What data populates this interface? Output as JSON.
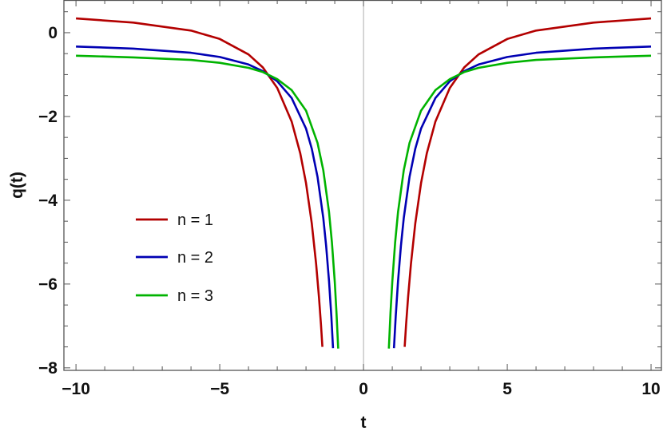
{
  "chart_data": {
    "type": "line",
    "title": "",
    "xlabel": "t",
    "ylabel": "q(t)",
    "xlim": [
      -10.42,
      10.36
    ],
    "ylim": [
      -8.06,
      0.78
    ],
    "xticks": [
      -10,
      -5,
      0,
      5,
      10
    ],
    "xtick_labels": [
      "−10",
      "−5",
      "0",
      "5",
      "10"
    ],
    "yticks": [
      0,
      -2,
      -4,
      -6,
      -8
    ],
    "ytick_labels": [
      "0",
      "−2",
      "−4",
      "−6",
      "−8"
    ],
    "grid": false,
    "legend_position": "left-center",
    "series": [
      {
        "name": "n = 1",
        "color": "#b30000",
        "branches": [
          {
            "x": [
              -10,
              -8,
              -6,
              -5,
              -4,
              -3.5,
              -3,
              -2.5,
              -2.2,
              -2,
              -1.8,
              -1.65,
              -1.55,
              -1.48,
              -1.43
            ],
            "y": [
              0.34,
              0.24,
              0.05,
              -0.15,
              -0.52,
              -0.83,
              -1.32,
              -2.12,
              -2.88,
              -3.59,
              -4.55,
              -5.51,
              -6.31,
              -6.96,
              -7.5
            ]
          },
          {
            "x": [
              1.43,
              1.48,
              1.55,
              1.65,
              1.8,
              2,
              2.2,
              2.5,
              3,
              3.5,
              4,
              5,
              6,
              8,
              10
            ],
            "y": [
              -7.5,
              -6.96,
              -6.31,
              -5.51,
              -4.55,
              -3.59,
              -2.88,
              -2.12,
              -1.32,
              -0.83,
              -0.52,
              -0.15,
              0.05,
              0.24,
              0.34
            ]
          }
        ]
      },
      {
        "name": "n = 2",
        "color": "#0000b3",
        "branches": [
          {
            "x": [
              -10,
              -8,
              -6,
              -5,
              -4,
              -3.5,
              -3,
              -2.5,
              -2,
              -1.8,
              -1.6,
              -1.4,
              -1.3,
              -1.2,
              -1.12,
              -1.06
            ],
            "y": [
              -0.33,
              -0.38,
              -0.48,
              -0.58,
              -0.76,
              -0.92,
              -1.16,
              -1.56,
              -2.29,
              -2.77,
              -3.44,
              -4.42,
              -5.09,
              -5.93,
              -6.77,
              -7.53
            ]
          },
          {
            "x": [
              1.06,
              1.12,
              1.2,
              1.3,
              1.4,
              1.6,
              1.8,
              2,
              2.5,
              3,
              3.5,
              4,
              5,
              6,
              8,
              10
            ],
            "y": [
              -7.53,
              -6.77,
              -5.93,
              -5.09,
              -4.42,
              -3.44,
              -2.77,
              -2.29,
              -1.56,
              -1.16,
              -0.92,
              -0.76,
              -0.58,
              -0.48,
              -0.38,
              -0.33
            ]
          }
        ]
      },
      {
        "name": "n = 3",
        "color": "#00b300",
        "branches": [
          {
            "x": [
              -10,
              -8,
              -6,
              -5,
              -4,
              -3.5,
              -3,
              -2.5,
              -2,
              -1.6,
              -1.4,
              -1.2,
              -1.1,
              -1.0,
              -0.94,
              -0.88
            ],
            "y": [
              -0.55,
              -0.59,
              -0.65,
              -0.72,
              -0.84,
              -0.94,
              -1.11,
              -1.37,
              -1.86,
              -2.63,
              -3.28,
              -4.28,
              -5.0,
              -5.95,
              -6.67,
              -7.54
            ]
          },
          {
            "x": [
              0.88,
              0.94,
              1.0,
              1.1,
              1.2,
              1.4,
              1.6,
              2,
              2.5,
              3,
              3.5,
              4,
              5,
              6,
              8,
              10
            ],
            "y": [
              -7.54,
              -6.67,
              -5.95,
              -5.0,
              -4.28,
              -3.28,
              -2.63,
              -1.86,
              -1.37,
              -1.11,
              -0.94,
              -0.84,
              -0.72,
              -0.65,
              -0.59,
              -0.55
            ]
          }
        ]
      }
    ]
  }
}
